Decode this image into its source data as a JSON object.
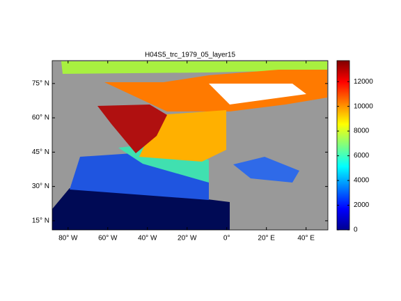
{
  "title": "H04S5_trc_1979_05_layer15",
  "map": {
    "lonlim": [
      -88,
      51
    ],
    "latlim": [
      11,
      85
    ],
    "lon_ticks": [
      {
        "value": -80,
        "label": "80° W"
      },
      {
        "value": -60,
        "label": "60° W"
      },
      {
        "value": -40,
        "label": "40° W"
      },
      {
        "value": -20,
        "label": "20° W"
      },
      {
        "value": 0,
        "label": "0°"
      },
      {
        "value": 20,
        "label": "20° E"
      },
      {
        "value": 40,
        "label": "40° E"
      }
    ],
    "lat_ticks": [
      {
        "value": 15,
        "label": "15° N"
      },
      {
        "value": 30,
        "label": "30° N"
      },
      {
        "value": 45,
        "label": "45° N"
      },
      {
        "value": 60,
        "label": "60° N"
      },
      {
        "value": 75,
        "label": "75° N"
      }
    ]
  },
  "colorbar": {
    "lim": [
      0,
      13700
    ],
    "ticks": [
      0,
      2000,
      4000,
      6000,
      8000,
      10000,
      12000
    ]
  }
}
